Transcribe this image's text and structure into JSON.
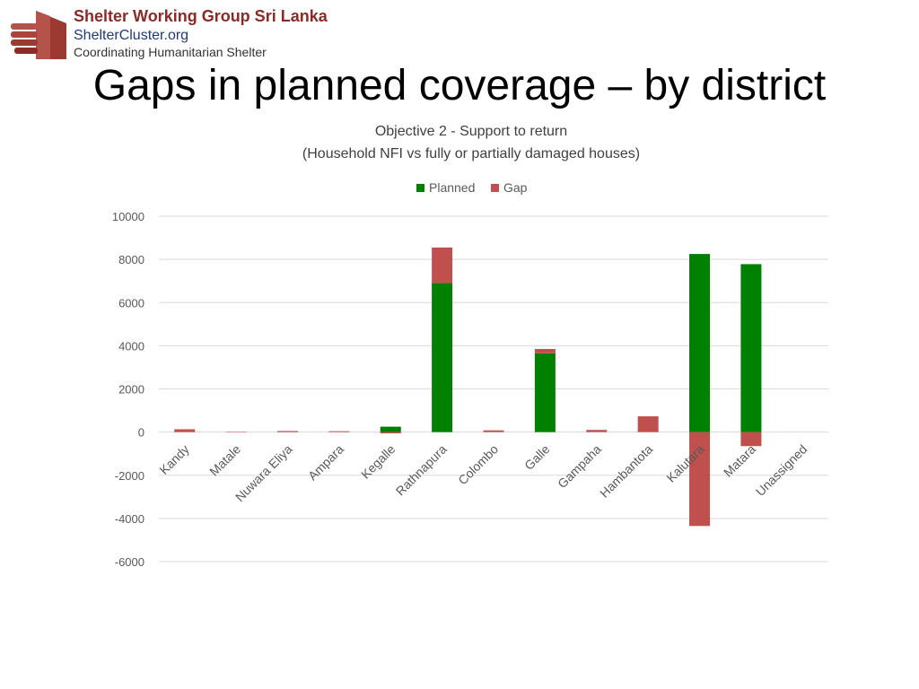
{
  "logo": {
    "line1": "Shelter Working Group Sri Lanka",
    "line2": "ShelterCluster.org",
    "line3": "Coordinating Humanitarian Shelter",
    "icon": "hand-house-icon"
  },
  "slide": {
    "title": "Gaps in planned coverage – by district"
  },
  "colors": {
    "planned": "#008000",
    "gap": "#c0504d",
    "grid": "#d9d9d9",
    "text": "#595959"
  },
  "chart_data": {
    "type": "bar",
    "stacked": true,
    "title": "Objective 2 - Support to return",
    "subtitle": "(Household NFI vs fully or partially damaged houses)",
    "legend": [
      "Planned",
      "Gap"
    ],
    "legend_position": "top",
    "categories": [
      "Kandy",
      "Matale",
      "Nuwara Eliya",
      "Ampara",
      "Kegalle",
      "Rathnapura",
      "Colombo",
      "Galle",
      "Gampaha",
      "Hambantota",
      "Kalutara",
      "Matara",
      "Unassigned"
    ],
    "series": [
      {
        "name": "Planned",
        "values": [
          0,
          0,
          0,
          0,
          250,
          6900,
          0,
          3650,
          0,
          0,
          8250,
          7780,
          0
        ]
      },
      {
        "name": "Gap",
        "values": [
          130,
          20,
          50,
          40,
          -60,
          1650,
          80,
          200,
          100,
          730,
          -4350,
          -650,
          0
        ]
      }
    ],
    "ylim": [
      -6000,
      10000
    ],
    "yticks": [
      10000,
      8000,
      6000,
      4000,
      2000,
      0,
      -2000,
      -4000,
      -6000
    ],
    "xlabel": "",
    "ylabel": "",
    "grid": true
  }
}
